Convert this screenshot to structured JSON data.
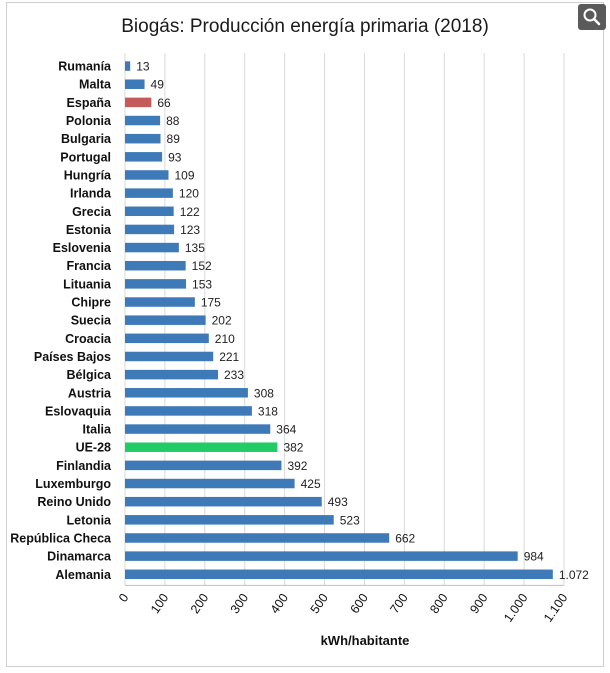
{
  "chart_data": {
    "type": "bar",
    "orientation": "horizontal",
    "title": "Biogás: Producción energía primaria (2018)",
    "xlabel": "kWh/habitante",
    "ylabel": "",
    "xlim": [
      0,
      1100
    ],
    "xticks": [
      0,
      100,
      200,
      300,
      400,
      500,
      600,
      700,
      800,
      900,
      1000,
      1100
    ],
    "xtick_labels": [
      "0",
      "100",
      "200",
      "300",
      "400",
      "500",
      "600",
      "700",
      "800",
      "900",
      "1.000",
      "1.100"
    ],
    "grid": "vertical",
    "colors": {
      "default": "#3f7ab8",
      "Spain": "#c55a5a",
      "EU": "#21cc66"
    },
    "categories": [
      "Rumanía",
      "Malta",
      "España",
      "Polonia",
      "Bulgaria",
      "Portugal",
      "Hungría",
      "Irlanda",
      "Grecia",
      "Estonia",
      "Eslovenia",
      "Francia",
      "Lituania",
      "Chipre",
      "Suecia",
      "Croacia",
      "Países Bajos",
      "Bélgica",
      "Austria",
      "Eslovaquia",
      "Italia",
      "UE-28",
      "Finlandia",
      "Luxemburgo",
      "Reino Unido",
      "Letonia",
      "República Checa",
      "Dinamarca",
      "Alemania"
    ],
    "values": [
      13,
      49,
      66,
      88,
      89,
      93,
      109,
      120,
      122,
      123,
      135,
      152,
      153,
      175,
      202,
      210,
      221,
      233,
      308,
      318,
      364,
      382,
      392,
      425,
      493,
      523,
      662,
      984,
      1072
    ],
    "value_labels": [
      "13",
      "49",
      "66",
      "88",
      "89",
      "93",
      "109",
      "120",
      "122",
      "123",
      "135",
      "152",
      "153",
      "175",
      "202",
      "210",
      "221",
      "233",
      "308",
      "318",
      "364",
      "382",
      "392",
      "425",
      "493",
      "523",
      "662",
      "984",
      "1.072"
    ],
    "highlight": {
      "España": "Spain",
      "UE-28": "EU"
    }
  },
  "toolbar": {
    "search_icon": "search-icon"
  }
}
